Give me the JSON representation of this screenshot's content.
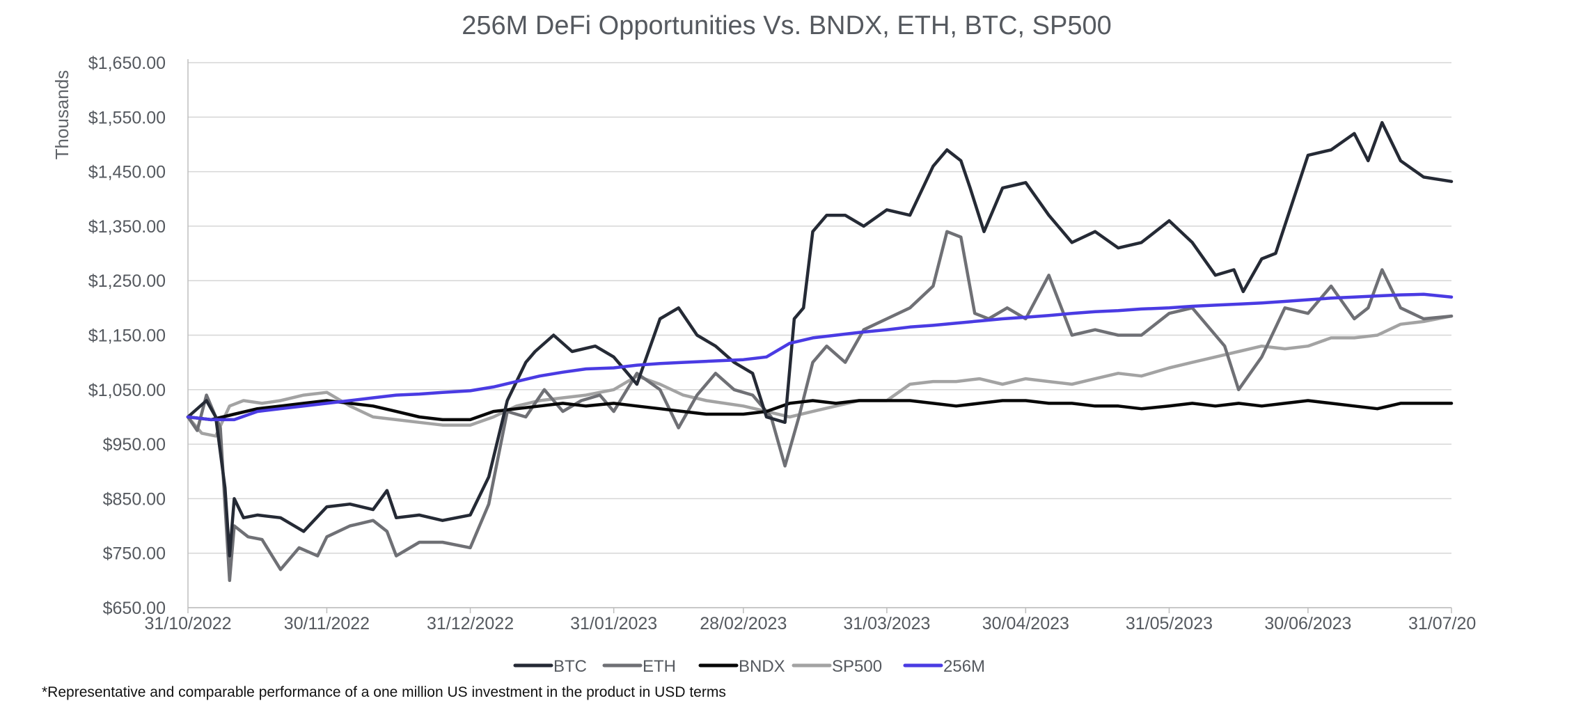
{
  "chart_data": {
    "type": "line",
    "title": "256M DeFi Opportunities Vs. BNDX, ETH, BTC, SP500",
    "ylabel": "Thousands",
    "xlabel": "",
    "ylim": [
      650,
      1650
    ],
    "y_ticks": [
      "$1,650.00",
      "$1,550.00",
      "$1,450.00",
      "$1,350.00",
      "$1,250.00",
      "$1,150.00",
      "$1,050.00",
      "$950.00",
      "$850.00",
      "$750.00",
      "$650.00"
    ],
    "y_tick_values": [
      1650,
      1550,
      1450,
      1350,
      1250,
      1150,
      1050,
      950,
      850,
      750,
      650
    ],
    "x_range": [
      "2022-10-31",
      "2023-07-31"
    ],
    "x_ticks": [
      {
        "date": "2022-10-31",
        "label": "31/10/2022"
      },
      {
        "date": "2022-11-30",
        "label": "30/11/2022"
      },
      {
        "date": "2022-12-31",
        "label": "31/12/2022"
      },
      {
        "date": "2023-01-31",
        "label": "31/01/2023"
      },
      {
        "date": "2023-02-28",
        "label": "28/02/2023"
      },
      {
        "date": "2023-03-31",
        "label": "31/03/2023"
      },
      {
        "date": "2023-04-30",
        "label": "30/04/2023"
      },
      {
        "date": "2023-05-31",
        "label": "31/05/2023"
      },
      {
        "date": "2023-06-30",
        "label": "30/06/2023"
      },
      {
        "date": "2023-07-31",
        "label": "31/07/20"
      }
    ],
    "grid": true,
    "legend_position": "bottom-center",
    "series": [
      {
        "name": "BTC",
        "color": "#252a35",
        "x": [
          "2022-10-31",
          "2022-11-04",
          "2022-11-06",
          "2022-11-08",
          "2022-11-09",
          "2022-11-10",
          "2022-11-12",
          "2022-11-15",
          "2022-11-20",
          "2022-11-25",
          "2022-11-30",
          "2022-12-05",
          "2022-12-10",
          "2022-12-13",
          "2022-12-15",
          "2022-12-20",
          "2022-12-25",
          "2022-12-31",
          "2023-01-04",
          "2023-01-08",
          "2023-01-12",
          "2023-01-14",
          "2023-01-18",
          "2023-01-22",
          "2023-01-27",
          "2023-01-31",
          "2023-02-05",
          "2023-02-10",
          "2023-02-14",
          "2023-02-18",
          "2023-02-22",
          "2023-02-26",
          "2023-03-02",
          "2023-03-05",
          "2023-03-09",
          "2023-03-11",
          "2023-03-13",
          "2023-03-15",
          "2023-03-18",
          "2023-03-22",
          "2023-03-26",
          "2023-03-31",
          "2023-04-05",
          "2023-04-10",
          "2023-04-13",
          "2023-04-16",
          "2023-04-18",
          "2023-04-21",
          "2023-04-25",
          "2023-04-30",
          "2023-05-05",
          "2023-05-10",
          "2023-05-15",
          "2023-05-20",
          "2023-05-25",
          "2023-05-31",
          "2023-06-05",
          "2023-06-10",
          "2023-06-14",
          "2023-06-16",
          "2023-06-20",
          "2023-06-23",
          "2023-06-30",
          "2023-07-05",
          "2023-07-10",
          "2023-07-13",
          "2023-07-16",
          "2023-07-20",
          "2023-07-25",
          "2023-07-31"
        ],
        "y": [
          1000,
          1030,
          1000,
          870,
          745,
          850,
          815,
          820,
          815,
          790,
          835,
          840,
          830,
          865,
          815,
          820,
          810,
          820,
          890,
          1030,
          1100,
          1120,
          1150,
          1120,
          1130,
          1110,
          1060,
          1180,
          1200,
          1150,
          1130,
          1100,
          1080,
          1000,
          990,
          1180,
          1200,
          1340,
          1370,
          1370,
          1350,
          1380,
          1370,
          1460,
          1490,
          1470,
          1420,
          1340,
          1420,
          1430,
          1370,
          1320,
          1340,
          1310,
          1320,
          1360,
          1320,
          1260,
          1270,
          1230,
          1290,
          1300,
          1480,
          1490,
          1520,
          1470,
          1540,
          1470,
          1440,
          1432
        ]
      },
      {
        "name": "ETH",
        "color": "#6f7075",
        "x": [
          "2022-10-31",
          "2022-11-02",
          "2022-11-04",
          "2022-11-07",
          "2022-11-09",
          "2022-11-10",
          "2022-11-13",
          "2022-11-16",
          "2022-11-20",
          "2022-11-24",
          "2022-11-28",
          "2022-11-30",
          "2022-12-05",
          "2022-12-10",
          "2022-12-13",
          "2022-12-15",
          "2022-12-20",
          "2022-12-25",
          "2022-12-31",
          "2023-01-04",
          "2023-01-08",
          "2023-01-12",
          "2023-01-16",
          "2023-01-20",
          "2023-01-24",
          "2023-01-28",
          "2023-01-31",
          "2023-02-05",
          "2023-02-10",
          "2023-02-14",
          "2023-02-18",
          "2023-02-22",
          "2023-02-26",
          "2023-03-02",
          "2023-03-06",
          "2023-03-09",
          "2023-03-12",
          "2023-03-15",
          "2023-03-18",
          "2023-03-22",
          "2023-03-26",
          "2023-03-31",
          "2023-04-05",
          "2023-04-10",
          "2023-04-13",
          "2023-04-16",
          "2023-04-19",
          "2023-04-22",
          "2023-04-26",
          "2023-04-30",
          "2023-05-05",
          "2023-05-10",
          "2023-05-15",
          "2023-05-20",
          "2023-05-25",
          "2023-05-31",
          "2023-06-05",
          "2023-06-09",
          "2023-06-12",
          "2023-06-15",
          "2023-06-20",
          "2023-06-25",
          "2023-06-30",
          "2023-07-05",
          "2023-07-10",
          "2023-07-13",
          "2023-07-16",
          "2023-07-20",
          "2023-07-25",
          "2023-07-31"
        ],
        "y": [
          1000,
          975,
          1040,
          980,
          700,
          800,
          780,
          775,
          720,
          760,
          745,
          780,
          800,
          810,
          790,
          745,
          770,
          770,
          760,
          840,
          1010,
          1000,
          1050,
          1010,
          1030,
          1040,
          1010,
          1080,
          1050,
          980,
          1040,
          1080,
          1050,
          1040,
          1000,
          910,
          1000,
          1100,
          1130,
          1100,
          1160,
          1180,
          1200,
          1240,
          1340,
          1330,
          1190,
          1180,
          1200,
          1180,
          1260,
          1150,
          1160,
          1150,
          1150,
          1190,
          1200,
          1160,
          1130,
          1050,
          1110,
          1200,
          1190,
          1240,
          1180,
          1200,
          1270,
          1200,
          1180,
          1185
        ]
      },
      {
        "name": "BNDX",
        "color": "#080808",
        "x": [
          "2022-10-31",
          "2022-11-05",
          "2022-11-10",
          "2022-11-15",
          "2022-11-20",
          "2022-11-25",
          "2022-11-30",
          "2022-12-05",
          "2022-12-10",
          "2022-12-15",
          "2022-12-20",
          "2022-12-25",
          "2022-12-31",
          "2023-01-05",
          "2023-01-10",
          "2023-01-15",
          "2023-01-20",
          "2023-01-25",
          "2023-01-31",
          "2023-02-05",
          "2023-02-10",
          "2023-02-15",
          "2023-02-20",
          "2023-02-28",
          "2023-03-05",
          "2023-03-10",
          "2023-03-15",
          "2023-03-20",
          "2023-03-25",
          "2023-03-31",
          "2023-04-05",
          "2023-04-10",
          "2023-04-15",
          "2023-04-20",
          "2023-04-25",
          "2023-04-30",
          "2023-05-05",
          "2023-05-10",
          "2023-05-15",
          "2023-05-20",
          "2023-05-25",
          "2023-05-31",
          "2023-06-05",
          "2023-06-10",
          "2023-06-15",
          "2023-06-20",
          "2023-06-25",
          "2023-06-30",
          "2023-07-05",
          "2023-07-10",
          "2023-07-15",
          "2023-07-20",
          "2023-07-25",
          "2023-07-31"
        ],
        "y": [
          1000,
          995,
          1005,
          1015,
          1020,
          1025,
          1030,
          1025,
          1020,
          1010,
          1000,
          995,
          995,
          1010,
          1015,
          1020,
          1025,
          1020,
          1025,
          1020,
          1015,
          1010,
          1005,
          1005,
          1010,
          1025,
          1030,
          1025,
          1030,
          1030,
          1030,
          1025,
          1020,
          1025,
          1030,
          1030,
          1025,
          1025,
          1020,
          1020,
          1015,
          1020,
          1025,
          1020,
          1025,
          1020,
          1025,
          1030,
          1025,
          1020,
          1015,
          1025,
          1025,
          1025
        ]
      },
      {
        "name": "SP500",
        "color": "#a3a3a3",
        "x": [
          "2022-10-31",
          "2022-11-03",
          "2022-11-06",
          "2022-11-09",
          "2022-11-12",
          "2022-11-16",
          "2022-11-20",
          "2022-11-25",
          "2022-11-30",
          "2022-12-05",
          "2022-12-10",
          "2022-12-15",
          "2022-12-20",
          "2022-12-25",
          "2022-12-31",
          "2023-01-05",
          "2023-01-10",
          "2023-01-15",
          "2023-01-20",
          "2023-01-25",
          "2023-01-31",
          "2023-02-05",
          "2023-02-10",
          "2023-02-15",
          "2023-02-20",
          "2023-02-28",
          "2023-03-05",
          "2023-03-10",
          "2023-03-15",
          "2023-03-20",
          "2023-03-25",
          "2023-03-31",
          "2023-04-05",
          "2023-04-10",
          "2023-04-15",
          "2023-04-20",
          "2023-04-25",
          "2023-04-30",
          "2023-05-05",
          "2023-05-10",
          "2023-05-15",
          "2023-05-20",
          "2023-05-25",
          "2023-05-31",
          "2023-06-05",
          "2023-06-10",
          "2023-06-15",
          "2023-06-20",
          "2023-06-25",
          "2023-06-30",
          "2023-07-05",
          "2023-07-10",
          "2023-07-15",
          "2023-07-20",
          "2023-07-25",
          "2023-07-31"
        ],
        "y": [
          1000,
          970,
          965,
          1020,
          1030,
          1025,
          1030,
          1040,
          1045,
          1020,
          1000,
          995,
          990,
          985,
          985,
          1000,
          1020,
          1030,
          1035,
          1040,
          1050,
          1075,
          1060,
          1040,
          1030,
          1020,
          1010,
          1000,
          1010,
          1020,
          1030,
          1030,
          1060,
          1065,
          1065,
          1070,
          1060,
          1070,
          1065,
          1060,
          1070,
          1080,
          1075,
          1090,
          1100,
          1110,
          1120,
          1130,
          1125,
          1130,
          1145,
          1145,
          1150,
          1170,
          1175,
          1185
        ]
      },
      {
        "name": "256M",
        "color": "#4a3be3",
        "x": [
          "2022-10-31",
          "2022-11-05",
          "2022-11-10",
          "2022-11-15",
          "2022-11-20",
          "2022-11-25",
          "2022-11-30",
          "2022-12-05",
          "2022-12-10",
          "2022-12-15",
          "2022-12-20",
          "2022-12-25",
          "2022-12-31",
          "2023-01-05",
          "2023-01-10",
          "2023-01-15",
          "2023-01-20",
          "2023-01-25",
          "2023-01-31",
          "2023-02-05",
          "2023-02-10",
          "2023-02-15",
          "2023-02-20",
          "2023-02-28",
          "2023-03-05",
          "2023-03-10",
          "2023-03-15",
          "2023-03-20",
          "2023-03-25",
          "2023-03-31",
          "2023-04-05",
          "2023-04-10",
          "2023-04-15",
          "2023-04-20",
          "2023-04-25",
          "2023-04-30",
          "2023-05-05",
          "2023-05-10",
          "2023-05-15",
          "2023-05-20",
          "2023-05-25",
          "2023-05-31",
          "2023-06-05",
          "2023-06-10",
          "2023-06-15",
          "2023-06-20",
          "2023-06-25",
          "2023-06-30",
          "2023-07-05",
          "2023-07-10",
          "2023-07-15",
          "2023-07-20",
          "2023-07-25",
          "2023-07-31"
        ],
        "y": [
          1000,
          995,
          995,
          1010,
          1015,
          1020,
          1025,
          1030,
          1035,
          1040,
          1042,
          1045,
          1048,
          1055,
          1065,
          1075,
          1082,
          1088,
          1090,
          1095,
          1098,
          1100,
          1102,
          1105,
          1110,
          1135,
          1145,
          1150,
          1155,
          1160,
          1165,
          1168,
          1172,
          1176,
          1180,
          1183,
          1186,
          1190,
          1193,
          1195,
          1198,
          1200,
          1203,
          1205,
          1207,
          1209,
          1212,
          1215,
          1218,
          1220,
          1222,
          1224,
          1225,
          1220
        ]
      }
    ],
    "legend": [
      "BTC",
      "ETH",
      "BNDX",
      "SP500",
      "256M"
    ]
  },
  "footnote": "*Representative and comparable performance of a one million US investment in the product in USD terms"
}
